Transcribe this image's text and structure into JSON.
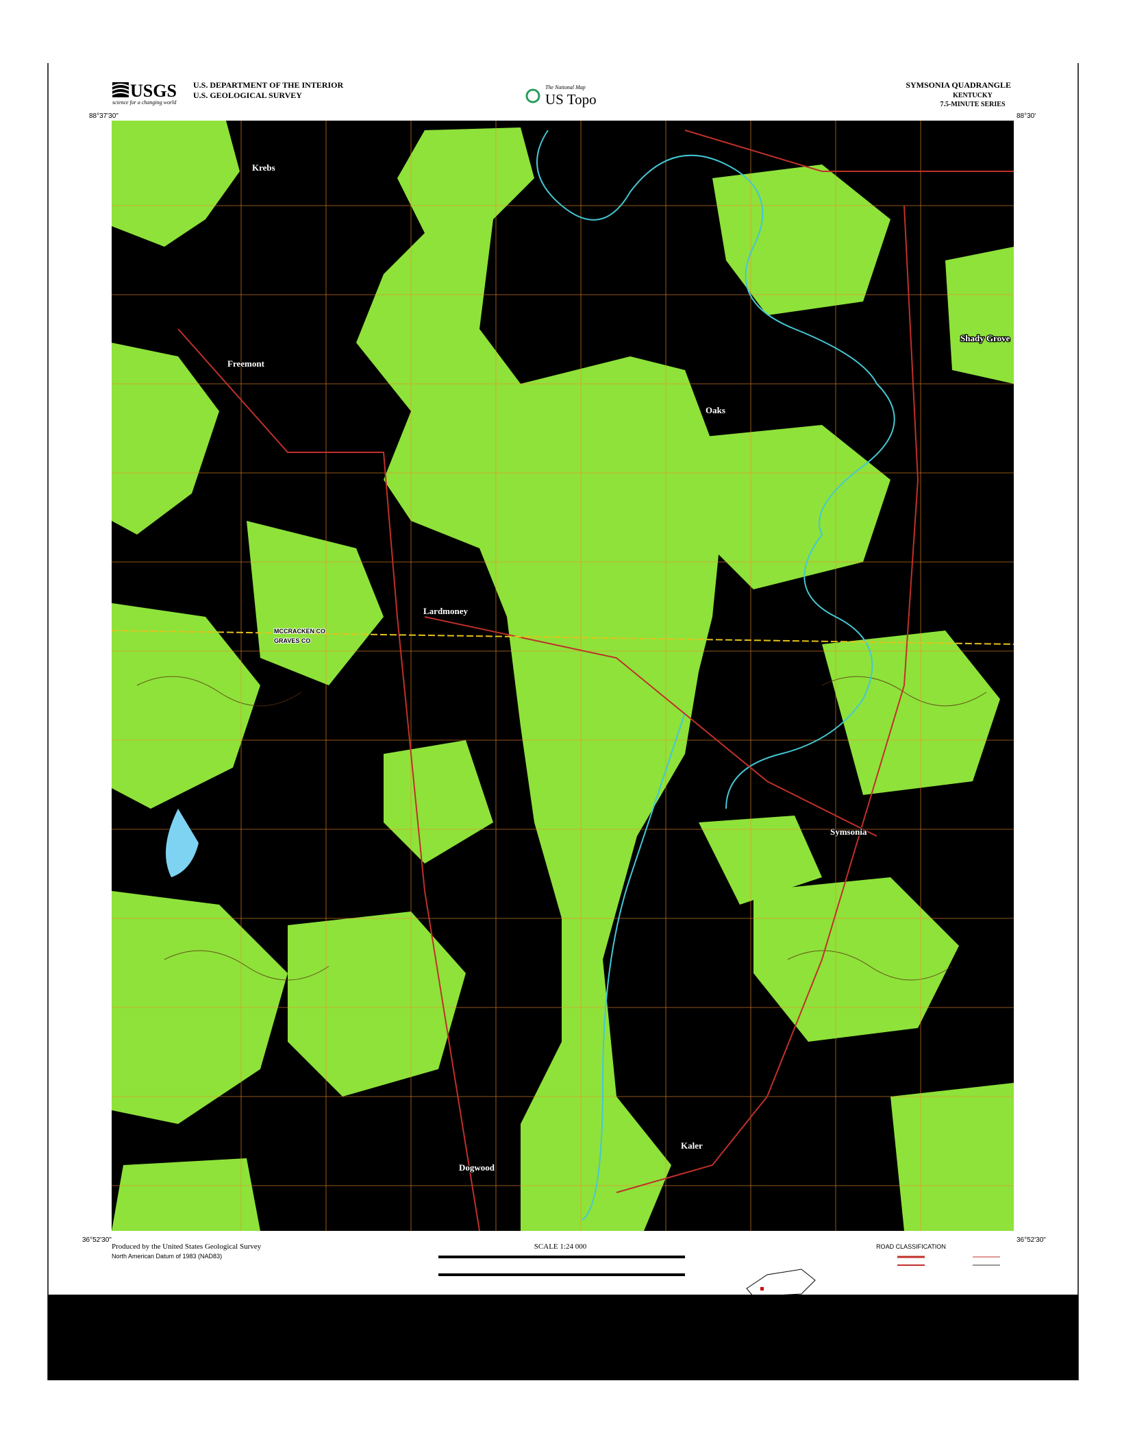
{
  "header": {
    "logo": "USGS",
    "tagline": "science for a changing world",
    "agency": [
      "U.S. DEPARTMENT OF THE INTERIOR",
      "U.S. GEOLOGICAL SURVEY"
    ],
    "national_map": "The National Map",
    "product": "US Topo",
    "title": "SYMSONIA QUADRANGLE",
    "state": "KENTUCKY",
    "series": "7.5-MINUTE SERIES"
  },
  "map": {
    "places": [
      "Freemont",
      "Krebs",
      "Oaks",
      "Shady Grove",
      "Lardmoney",
      "Symsonia",
      "Dogwood",
      "Kaler"
    ],
    "counties": [
      "MCCRACKEN CO",
      "GRAVES CO"
    ],
    "coordinates": {
      "nw": "88°37'30\"",
      "ne": "88°30'",
      "sw": "36°52'30\"",
      "se": "36°52'30\""
    }
  },
  "footer": {
    "producer": "Produced by the United States Geological Survey",
    "datum": "North American Datum of 1983 (NAD83)",
    "scale": "SCALE 1:24 000",
    "road_classification": "ROAD CLASSIFICATION"
  }
}
